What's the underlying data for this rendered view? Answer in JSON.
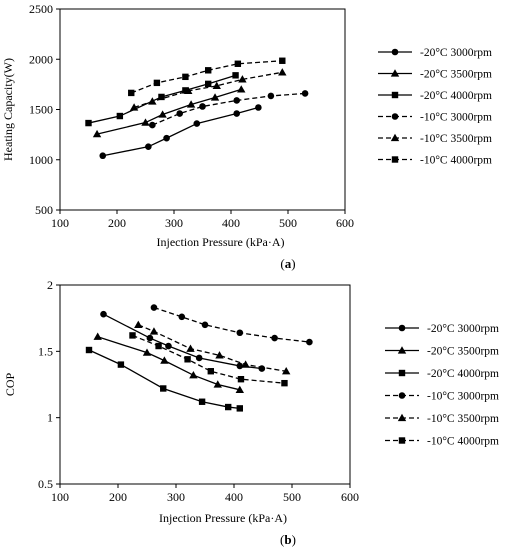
{
  "chart_data": [
    {
      "type": "line",
      "panel_label": "a",
      "xlabel": "Injection Pressure (kPa·A)",
      "ylabel": "Heating Capacity(W)",
      "xlim": [
        100,
        600
      ],
      "ylim": [
        500,
        2500
      ],
      "xticks": [
        "100",
        "200",
        "300",
        "400",
        "500",
        "600"
      ],
      "yticks": [
        "500",
        "1000",
        "1500",
        "2000",
        "2500"
      ],
      "grid": false,
      "legend": "right",
      "series": [
        {
          "name": "-20°C 3000rpm",
          "marker": "circle",
          "dash": "solid",
          "x": [
            175,
            255,
            287,
            340,
            410,
            448
          ],
          "y": [
            1040,
            1130,
            1215,
            1360,
            1460,
            1520
          ]
        },
        {
          "name": "-20°C 3500rpm",
          "marker": "triangle",
          "dash": "solid",
          "x": [
            165,
            250,
            280,
            330,
            372,
            418
          ],
          "y": [
            1255,
            1370,
            1450,
            1550,
            1620,
            1700
          ]
        },
        {
          "name": "-20°C 4000rpm",
          "marker": "square",
          "dash": "solid",
          "x": [
            150,
            205,
            278,
            320,
            360,
            408
          ],
          "y": [
            1365,
            1435,
            1625,
            1690,
            1755,
            1840
          ]
        },
        {
          "name": "-10°C 3000rpm",
          "marker": "circle",
          "dash": "dashed",
          "x": [
            262,
            310,
            350,
            410,
            470,
            530
          ],
          "y": [
            1345,
            1460,
            1530,
            1590,
            1635,
            1660
          ]
        },
        {
          "name": "-10°C 3500rpm",
          "marker": "triangle",
          "dash": "dashed",
          "x": [
            230,
            262,
            325,
            375,
            420,
            490
          ],
          "y": [
            1520,
            1580,
            1685,
            1735,
            1800,
            1870
          ]
        },
        {
          "name": "-10°C 4000rpm",
          "marker": "square",
          "dash": "dashed",
          "x": [
            225,
            270,
            320,
            360,
            412,
            490
          ],
          "y": [
            1665,
            1765,
            1825,
            1890,
            1955,
            1985
          ]
        }
      ]
    },
    {
      "type": "line",
      "panel_label": "b",
      "xlabel": "Injection Pressure (kPa·A)",
      "ylabel": "COP",
      "xlim": [
        100,
        600
      ],
      "ylim": [
        0.5,
        2
      ],
      "xticks": [
        "100",
        "200",
        "300",
        "400",
        "500",
        "600"
      ],
      "yticks": [
        "0.5",
        "1",
        "1.5",
        "2"
      ],
      "grid": false,
      "legend": "right",
      "series": [
        {
          "name": "-20°C 3000rpm",
          "marker": "circle",
          "dash": "solid",
          "x": [
            175,
            255,
            287,
            340,
            410,
            448
          ],
          "y": [
            1.78,
            1.6,
            1.54,
            1.45,
            1.39,
            1.37
          ]
        },
        {
          "name": "-20°C 3500rpm",
          "marker": "triangle",
          "dash": "solid",
          "x": [
            165,
            250,
            280,
            330,
            372,
            410
          ],
          "y": [
            1.61,
            1.49,
            1.43,
            1.32,
            1.25,
            1.21
          ]
        },
        {
          "name": "-20°C 4000rpm",
          "marker": "square",
          "dash": "solid",
          "x": [
            150,
            205,
            278,
            345,
            390,
            410
          ],
          "y": [
            1.51,
            1.4,
            1.22,
            1.12,
            1.08,
            1.07
          ]
        },
        {
          "name": "-10°C 3000rpm",
          "marker": "circle",
          "dash": "dashed",
          "x": [
            262,
            310,
            350,
            410,
            470,
            530
          ],
          "y": [
            1.83,
            1.76,
            1.7,
            1.64,
            1.6,
            1.57
          ]
        },
        {
          "name": "-10°C 3500rpm",
          "marker": "triangle",
          "dash": "dashed",
          "x": [
            235,
            262,
            325,
            375,
            420,
            490
          ],
          "y": [
            1.7,
            1.65,
            1.52,
            1.47,
            1.4,
            1.35
          ]
        },
        {
          "name": "-10°C 4000rpm",
          "marker": "square",
          "dash": "dashed",
          "x": [
            225,
            270,
            320,
            360,
            412,
            487
          ],
          "y": [
            1.62,
            1.54,
            1.44,
            1.35,
            1.29,
            1.26
          ]
        }
      ]
    }
  ]
}
